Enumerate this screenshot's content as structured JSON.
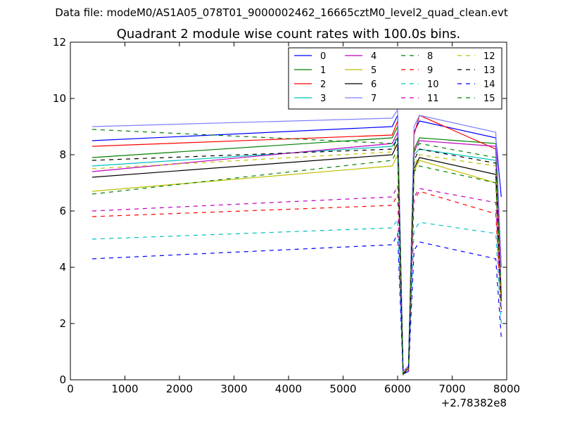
{
  "suptitle": "Data file: modeM0/AS1A05_078T01_9000002462_16665cztM0_level2_quad_clean.evt",
  "chart_data": {
    "type": "line",
    "title": "Quadrant 2 module wise count rates with 100.0s bins.",
    "xlabel": "",
    "ylabel": "",
    "x_offset_label": "+2.78382e8",
    "xlim": [
      0,
      8000
    ],
    "ylim": [
      0,
      12
    ],
    "xticks": [
      0,
      1000,
      2000,
      3000,
      4000,
      5000,
      6000,
      7000,
      8000
    ],
    "yticks": [
      0,
      2,
      4,
      6,
      8,
      10,
      12
    ],
    "xtick_labels": [
      "0",
      "1000",
      "2000",
      "3000",
      "4000",
      "5000",
      "6000",
      "7000",
      "8000"
    ],
    "ytick_labels": [
      "0",
      "2",
      "4",
      "6",
      "8",
      "10",
      "12"
    ],
    "legend_position": "top-right",
    "legend_columns": 4,
    "x": [
      400,
      5900,
      6000,
      6100,
      6200,
      6300,
      6400,
      7800,
      7900
    ],
    "series": [
      {
        "name": "0",
        "color": "#0000ff",
        "dash": "solid",
        "values": [
          8.5,
          9.0,
          9.4,
          0.2,
          0.5,
          8.8,
          9.2,
          8.6,
          6.5
        ]
      },
      {
        "name": "1",
        "color": "#008000",
        "dash": "solid",
        "values": [
          7.9,
          8.6,
          9.0,
          0.2,
          0.4,
          8.2,
          8.6,
          8.4,
          4.0
        ]
      },
      {
        "name": "2",
        "color": "#ff0000",
        "dash": "solid",
        "values": [
          8.3,
          8.7,
          9.2,
          0.2,
          0.5,
          8.7,
          9.4,
          8.2,
          4.0
        ]
      },
      {
        "name": "3",
        "color": "#00bfbf",
        "dash": "solid",
        "values": [
          7.6,
          8.3,
          8.6,
          0.2,
          0.4,
          8.0,
          8.2,
          7.8,
          3.0
        ]
      },
      {
        "name": "4",
        "color": "#bf00bf",
        "dash": "solid",
        "values": [
          7.4,
          8.4,
          8.8,
          0.2,
          0.4,
          8.1,
          8.5,
          8.3,
          3.0
        ]
      },
      {
        "name": "5",
        "color": "#bfbf00",
        "dash": "solid",
        "values": [
          6.7,
          7.6,
          8.0,
          0.2,
          0.4,
          7.4,
          7.8,
          7.0,
          2.8
        ]
      },
      {
        "name": "6",
        "color": "#000000",
        "dash": "solid",
        "values": [
          7.2,
          8.0,
          8.4,
          0.2,
          0.4,
          7.5,
          7.9,
          7.3,
          2.8
        ]
      },
      {
        "name": "7",
        "color": "#7f7fff",
        "dash": "solid",
        "values": [
          9.0,
          9.3,
          9.6,
          0.3,
          0.5,
          9.0,
          9.4,
          8.8,
          4.0
        ]
      },
      {
        "name": "8",
        "color": "#008000",
        "dash": "dashed",
        "values": [
          6.6,
          7.8,
          8.2,
          0.2,
          0.4,
          7.4,
          7.6,
          7.0,
          2.5
        ]
      },
      {
        "name": "9",
        "color": "#ff0000",
        "dash": "dashed",
        "values": [
          5.8,
          6.2,
          6.6,
          0.2,
          0.3,
          6.4,
          6.7,
          5.9,
          2.5
        ]
      },
      {
        "name": "10",
        "color": "#00bfbf",
        "dash": "dashed",
        "values": [
          5.0,
          5.4,
          5.7,
          0.2,
          0.3,
          5.3,
          5.6,
          5.2,
          2.0
        ]
      },
      {
        "name": "11",
        "color": "#bf00bf",
        "dash": "dashed",
        "values": [
          6.0,
          6.5,
          6.9,
          0.2,
          0.3,
          6.5,
          6.8,
          6.3,
          2.4
        ]
      },
      {
        "name": "12",
        "color": "#bfbf00",
        "dash": "dashed",
        "values": [
          7.5,
          8.1,
          8.5,
          0.2,
          0.4,
          7.6,
          8.0,
          7.6,
          2.6
        ]
      },
      {
        "name": "13",
        "color": "#000000",
        "dash": "dashed",
        "values": [
          7.8,
          8.2,
          8.6,
          0.2,
          0.4,
          7.8,
          8.2,
          7.7,
          2.7
        ]
      },
      {
        "name": "14",
        "color": "#0000ff",
        "dash": "dashed",
        "values": [
          4.3,
          4.8,
          5.2,
          0.2,
          0.3,
          4.6,
          4.9,
          4.3,
          1.5
        ]
      },
      {
        "name": "15",
        "color": "#008000",
        "dash": "dashed",
        "values": [
          8.9,
          8.4,
          8.6,
          0.2,
          0.4,
          8.1,
          8.4,
          7.9,
          2.8
        ]
      }
    ]
  }
}
